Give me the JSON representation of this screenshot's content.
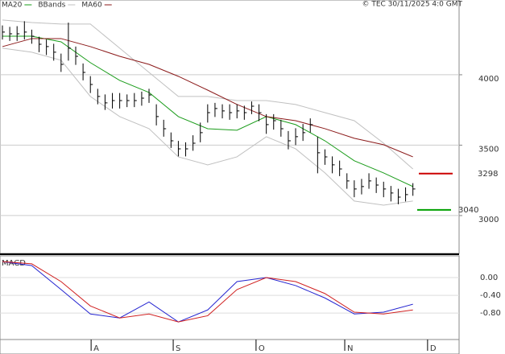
{
  "credit": "© TEC 30/11/2025 4:0 GMT",
  "chart_data": [
    {
      "type": "ohlc",
      "x": [
        0,
        2,
        4,
        6,
        8,
        10,
        12,
        14,
        16,
        18,
        20,
        22,
        24,
        26,
        28,
        30,
        32,
        34,
        36,
        38,
        40,
        42,
        44,
        46,
        48,
        50,
        52,
        54,
        56,
        58,
        60,
        62,
        64,
        66,
        68,
        70,
        72,
        74,
        76,
        78,
        80,
        82,
        84,
        86,
        88,
        90,
        92,
        94,
        96,
        98,
        100,
        102,
        104,
        106,
        108,
        110,
        112
      ],
      "high": [
        4350,
        4340,
        4345,
        4380,
        4320,
        4270,
        4250,
        4220,
        4150,
        4370,
        4200,
        4080,
        3990,
        3900,
        3860,
        3870,
        3870,
        3860,
        3870,
        3880,
        3900,
        3790,
        3680,
        3590,
        3530,
        3520,
        3570,
        3660,
        3790,
        3800,
        3790,
        3790,
        3790,
        3780,
        3810,
        3790,
        3720,
        3720,
        3680,
        3600,
        3620,
        3650,
        3690,
        3560,
        3470,
        3420,
        3390,
        3300,
        3250,
        3260,
        3300,
        3270,
        3240,
        3210,
        3190,
        3200,
        3230
      ],
      "low": [
        4250,
        4240,
        4240,
        4250,
        4220,
        4160,
        4140,
        4100,
        4020,
        4100,
        4070,
        3960,
        3870,
        3790,
        3750,
        3760,
        3760,
        3770,
        3770,
        3780,
        3800,
        3640,
        3560,
        3480,
        3420,
        3420,
        3460,
        3520,
        3660,
        3700,
        3690,
        3680,
        3690,
        3680,
        3720,
        3670,
        3580,
        3610,
        3560,
        3470,
        3500,
        3530,
        3590,
        3300,
        3360,
        3300,
        3280,
        3190,
        3130,
        3150,
        3190,
        3160,
        3130,
        3100,
        3080,
        3100,
        3140
      ],
      "close": [
        4303,
        4291,
        4291,
        4303,
        4274,
        4217,
        4200,
        4160,
        4074,
        4189,
        4131,
        4017,
        3931,
        3846,
        3800,
        3817,
        3817,
        3817,
        3817,
        3834,
        3857,
        3703,
        3617,
        3531,
        3474,
        3474,
        3514,
        3589,
        3731,
        3760,
        3743,
        3731,
        3743,
        3731,
        3777,
        3731,
        3646,
        3674,
        3617,
        3531,
        3560,
        3589,
        3646,
        3446,
        3417,
        3360,
        3331,
        3246,
        3189,
        3206,
        3246,
        3217,
        3189,
        3160,
        3131,
        3149,
        3189
      ],
      "color": "#000000",
      "series": [
        {
          "name": "MA20",
          "color": "#1a9c1a",
          "x": [
            0,
            8,
            16,
            24,
            32,
            40,
            48,
            56,
            64,
            72,
            80,
            88,
            96,
            104,
            112
          ],
          "values": [
            4274,
            4274,
            4234,
            4086,
            3960,
            3874,
            3703,
            3617,
            3606,
            3703,
            3646,
            3531,
            3389,
            3303,
            3206
          ]
        },
        {
          "name": "BBands",
          "color": "#c0c0c0",
          "x": [
            0,
            8,
            16,
            24,
            32,
            40,
            48,
            56,
            64,
            72,
            80,
            88,
            96,
            104,
            112
          ],
          "values": [
            4389,
            4371,
            4360,
            4360,
            4189,
            4017,
            3846,
            3846,
            3817,
            3817,
            3789,
            3731,
            3674,
            3514,
            3331
          ],
          "lower": [
            4189,
            4160,
            4103,
            3846,
            3703,
            3617,
            3417,
            3360,
            3417,
            3560,
            3474,
            3303,
            3103,
            3074,
            3103
          ]
        },
        {
          "name": "MA60",
          "color": "#8b1a1a",
          "x": [
            0,
            8,
            16,
            24,
            32,
            40,
            48,
            56,
            64,
            72,
            80,
            88,
            96,
            104,
            112
          ],
          "values": [
            4200,
            4257,
            4257,
            4200,
            4131,
            4074,
            3989,
            3891,
            3789,
            3703,
            3674,
            3617,
            3549,
            3503,
            3417
          ]
        }
      ],
      "levels": [
        {
          "value": 3298,
          "color": "#cc0000"
        },
        {
          "value": 3040,
          "color": "#00a000"
        }
      ],
      "xlim": [
        -0.66,
        124.6
      ],
      "ylim": [
        2731,
        4531
      ],
      "yticks": [
        3000,
        3500,
        4000
      ],
      "grid": true
    },
    {
      "type": "line",
      "title": "MACD",
      "series": [
        {
          "color": "#2323d0",
          "x": [
            0,
            8,
            16,
            24,
            32,
            40,
            48,
            56,
            64,
            72,
            80,
            88,
            96,
            104,
            112
          ],
          "values": [
            0.36,
            0.27,
            -0.27,
            -0.82,
            -0.91,
            -0.55,
            -1.0,
            -0.73,
            -0.09,
            0.0,
            -0.18,
            -0.46,
            -0.82,
            -0.78,
            -0.6
          ]
        },
        {
          "color": "#d02020",
          "x": [
            0,
            8,
            16,
            24,
            32,
            40,
            48,
            56,
            64,
            72,
            80,
            88,
            96,
            104,
            112
          ],
          "values": [
            0.36,
            0.31,
            -0.09,
            -0.64,
            -0.91,
            -0.82,
            -1.0,
            -0.86,
            -0.27,
            0.0,
            -0.09,
            -0.36,
            -0.78,
            -0.82,
            -0.73
          ]
        }
      ],
      "xlim": [
        -0.66,
        124.6
      ],
      "ylim": [
        -1.36,
        0.49
      ],
      "yticks": [
        {
          "value": 0,
          "label": "0.00"
        },
        {
          "value": -0.4,
          "label": "-0.40"
        },
        {
          "value": -0.8,
          "label": "-0.80"
        }
      ],
      "xticks": [
        {
          "value": 24.2,
          "label": "A"
        },
        {
          "value": 46.6,
          "label": "S"
        },
        {
          "value": 69.2,
          "label": "O"
        },
        {
          "value": 93.4,
          "label": "N"
        },
        {
          "value": 116,
          "label": "D"
        }
      ],
      "grid": true
    }
  ]
}
